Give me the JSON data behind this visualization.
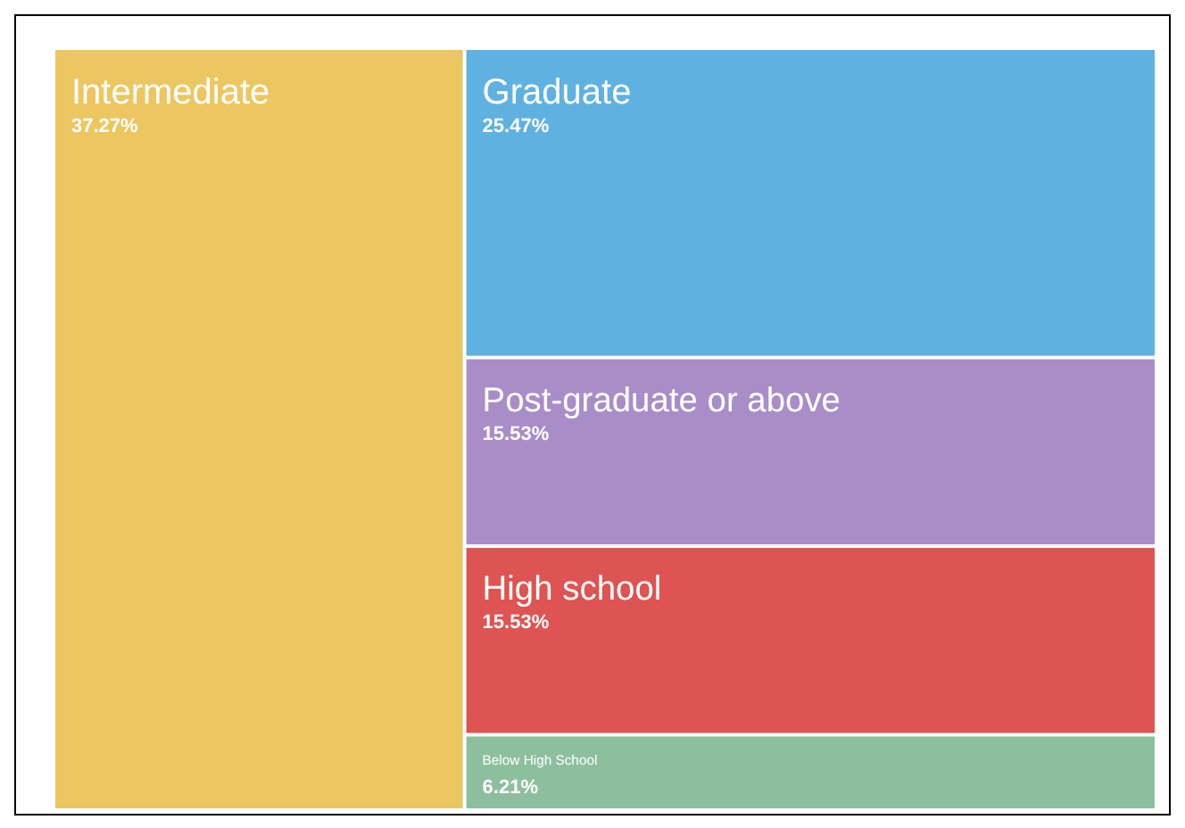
{
  "chart_data": {
    "type": "other",
    "categories": [
      "Intermediate",
      "Graduate",
      "Post-graduate or above",
      "High school",
      "Below High School"
    ],
    "values": [
      37.27,
      25.47,
      15.53,
      15.53,
      6.21
    ],
    "value_labels": [
      "37.27%",
      "25.47%",
      "15.53%",
      "15.53%",
      "6.21%"
    ],
    "colors": [
      "#ecc660",
      "#5fb1e2",
      "#a98dc8",
      "#dd5452",
      "#8dbf9f"
    ]
  }
}
